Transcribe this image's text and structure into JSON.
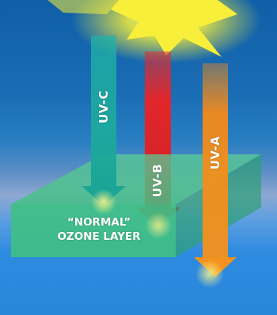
{
  "arrows": [
    {
      "label": "UV-C",
      "color": "#1ea79a"
    },
    {
      "label": "UV-B",
      "color": "#e0262b"
    },
    {
      "label": "UV-A",
      "color": "#f28a1c"
    }
  ],
  "ozone_layer": {
    "label_line1": "“NORMAL”",
    "label_line2": "OZONE LAYER",
    "color": "#3fbf86"
  },
  "sun": {
    "color": "#f7ef3a"
  }
}
